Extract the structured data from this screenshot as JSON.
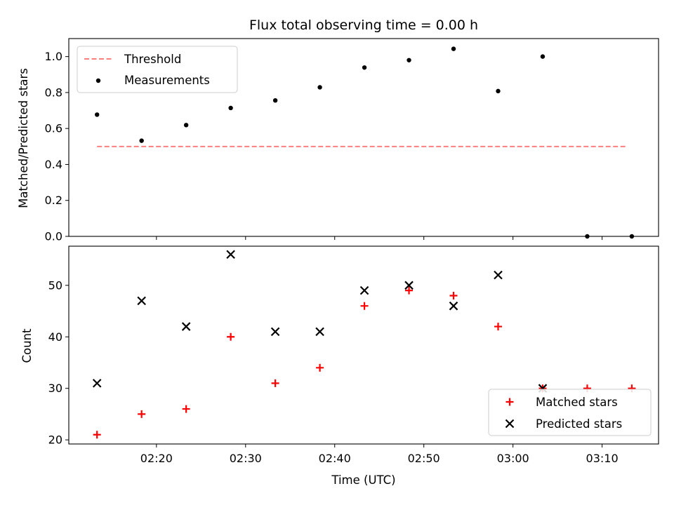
{
  "chart_data": [
    {
      "type": "scatter",
      "title": "Flux total observing time = 0.00 h",
      "xlabel": "",
      "ylabel": "Matched/Predicted stars",
      "ylim": [
        0,
        1.1
      ],
      "yticks": [
        0.0,
        0.2,
        0.4,
        0.6,
        0.8,
        1.0
      ],
      "yticklabels": [
        "0.0",
        "0.2",
        "0.4",
        "0.6",
        "0.8",
        "1.0"
      ],
      "legend_position": "upper left",
      "threshold": {
        "name": "Threshold",
        "value": 0.5,
        "x_start": "02:13:20",
        "x_end": "03:12:50",
        "color": "#ff7f7f",
        "style": "dashed"
      },
      "series": [
        {
          "name": "Measurements",
          "marker": "dot",
          "color": "#000000",
          "x": [
            "02:13:20",
            "02:18:20",
            "02:23:20",
            "02:28:20",
            "02:33:20",
            "02:38:20",
            "02:43:20",
            "02:48:20",
            "02:53:20",
            "02:58:20",
            "03:03:20",
            "03:08:20",
            "03:13:20"
          ],
          "y": [
            0.677,
            0.532,
            0.619,
            0.714,
            0.756,
            0.829,
            0.939,
            0.98,
            1.043,
            0.808,
            1.0,
            0.0,
            0.0
          ]
        }
      ]
    },
    {
      "type": "scatter",
      "title": "",
      "xlabel": "Time (UTC)",
      "ylabel": "Count",
      "ylim": [
        19.2,
        57.6
      ],
      "yticks": [
        20,
        30,
        40,
        50
      ],
      "yticklabels": [
        "20",
        "30",
        "40",
        "50"
      ],
      "x_range": [
        "02:10:10",
        "03:16:20"
      ],
      "xticks": [
        "02:20",
        "02:30",
        "02:40",
        "02:50",
        "03:00",
        "03:10"
      ],
      "legend_position": "lower right",
      "series": [
        {
          "name": "Matched stars",
          "marker": "plus",
          "color": "#ff0000",
          "x": [
            "02:13:20",
            "02:18:20",
            "02:23:20",
            "02:28:20",
            "02:33:20",
            "02:38:20",
            "02:43:20",
            "02:48:20",
            "02:53:20",
            "02:58:20",
            "03:03:20",
            "03:08:20",
            "03:13:20"
          ],
          "y": [
            21,
            25,
            26,
            40,
            31,
            34,
            46,
            49,
            48,
            42,
            30,
            30,
            30
          ]
        },
        {
          "name": "Predicted stars",
          "marker": "x",
          "color": "#000000",
          "x": [
            "02:13:20",
            "02:18:20",
            "02:23:20",
            "02:28:20",
            "02:33:20",
            "02:38:20",
            "02:43:20",
            "02:48:20",
            "02:53:20",
            "02:58:20",
            "03:03:20"
          ],
          "y": [
            31,
            47,
            42,
            56,
            41,
            41,
            49,
            50,
            46,
            52,
            30
          ]
        }
      ]
    }
  ]
}
